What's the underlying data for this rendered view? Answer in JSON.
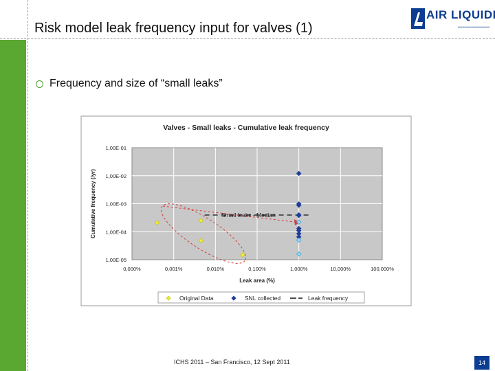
{
  "slide": {
    "title": "Risk model leak frequency input for valves (1)",
    "bullet": "Frequency and size of “small leaks”",
    "footer": "ICHS 2011 – San Francisco, 12 Sept 2011",
    "page_number": "14"
  },
  "logo": {
    "name": "AIR LIQUIDE",
    "brand_color": "#0b3d91"
  },
  "colors": {
    "accent_green": "#5aa832",
    "original_data": "#f2ef3a",
    "snl_dark": "#1f3c9b",
    "snl_light": "#35a9de",
    "trend_line": "#333333",
    "ellipse": "#d93a3a"
  },
  "chart_data": {
    "type": "scatter",
    "title": "Valves - Small leaks - Cumulative leak frequency",
    "xlabel": "Leak area (%)",
    "ylabel": "Cumulative frequency (/yr)",
    "x_scale": "log",
    "y_scale": "log",
    "x_ticks": [
      "0,000%",
      "0,001%",
      "0,010%",
      "0,100%",
      "1,000%",
      "10,000%",
      "100,000%"
    ],
    "y_ticks": [
      "1,00E-01",
      "1,00E-02",
      "1,00E-03",
      "1,00E-04",
      "1,00E-05"
    ],
    "xlim": [
      0.0001,
      100
    ],
    "ylim": [
      1e-05,
      0.1
    ],
    "grid": true,
    "legend_position": "bottom",
    "annotation": "Small leaks - Median",
    "series": [
      {
        "name": "Original Data",
        "kind": "point",
        "marker": "diamond",
        "color": "#f2ef3a",
        "points": [
          {
            "x": 0.0004,
            "y": 0.00021
          },
          {
            "x": 0.0045,
            "y": 0.00025
          },
          {
            "x": 0.0045,
            "y": 4.8e-05
          },
          {
            "x": 0.045,
            "y": 1.5e-05
          }
        ]
      },
      {
        "name": "SNL collected",
        "kind": "point",
        "marker": "diamond",
        "color": "#1f3c9b",
        "points": [
          {
            "x": 1,
            "y": 0.012
          },
          {
            "x": 1,
            "y": 0.00098
          },
          {
            "x": 1,
            "y": 0.00088
          },
          {
            "x": 1,
            "y": 0.0004
          },
          {
            "x": 1,
            "y": 0.00038
          },
          {
            "x": 1,
            "y": 0.00013
          },
          {
            "x": 1,
            "y": 0.00011
          },
          {
            "x": 1,
            "y": 8.5e-05
          },
          {
            "x": 1,
            "y": 6.5e-05
          },
          {
            "x": 1,
            "y": 5e-05,
            "light": true
          },
          {
            "x": 1,
            "y": 1.6e-05,
            "light": true
          },
          {
            "x": 1,
            "y": 0.00022,
            "light": true
          }
        ]
      },
      {
        "name": "Leak frequency",
        "kind": "dashed-line",
        "color": "#333333",
        "points": [
          {
            "x": 0.0055,
            "y": 0.00025
          },
          {
            "x": 2.0,
            "y": 0.00025
          }
        ]
      }
    ]
  }
}
